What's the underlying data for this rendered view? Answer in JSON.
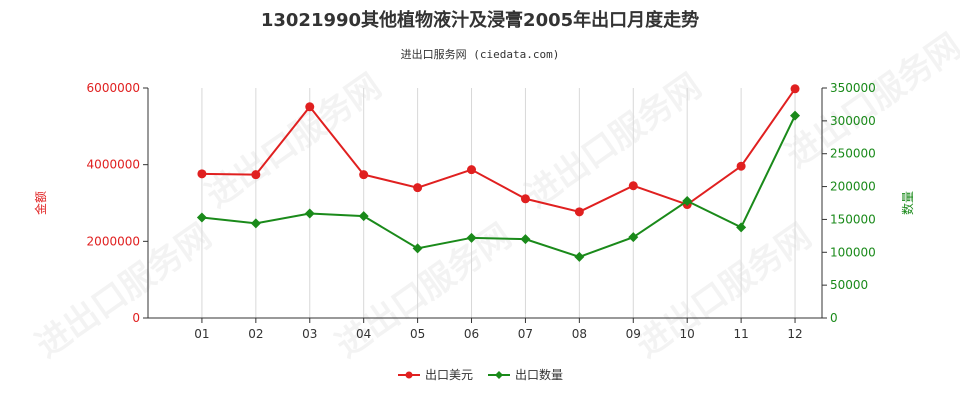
{
  "chart_data": {
    "type": "line",
    "title": "13021990其他植物液汁及浸膏2005年出口月度走势",
    "subtitle": "进出口服务网 (ciedata.com)",
    "watermark": "进出口服务网",
    "categories": [
      "01",
      "02",
      "03",
      "04",
      "05",
      "06",
      "07",
      "08",
      "09",
      "10",
      "11",
      "12"
    ],
    "y_left": {
      "label": "金额",
      "ylim": [
        0,
        6000000
      ],
      "ticks": [
        "0",
        "2000000",
        "4000000",
        "6000000"
      ],
      "color": "#e02020"
    },
    "y_right": {
      "label": "数量",
      "ylim": [
        0,
        350000
      ],
      "ticks": [
        "0",
        "50000",
        "100000",
        "150000",
        "200000",
        "250000",
        "300000",
        "350000"
      ],
      "color": "#1a8a1a"
    },
    "grid": "vertical",
    "legend_position": "bottom-center",
    "series": [
      {
        "name": "出口美元",
        "axis": "left",
        "color": "#e02020",
        "values": [
          3760000,
          3740000,
          5510000,
          3740000,
          3400000,
          3870000,
          3110000,
          2770000,
          3450000,
          2960000,
          3960000,
          5980000
        ]
      },
      {
        "name": "出口数量",
        "axis": "right",
        "color": "#1a8a1a",
        "values": [
          153000,
          144000,
          159000,
          155000,
          106000,
          122000,
          120000,
          93000,
          123000,
          178000,
          138000,
          308000
        ]
      }
    ]
  }
}
